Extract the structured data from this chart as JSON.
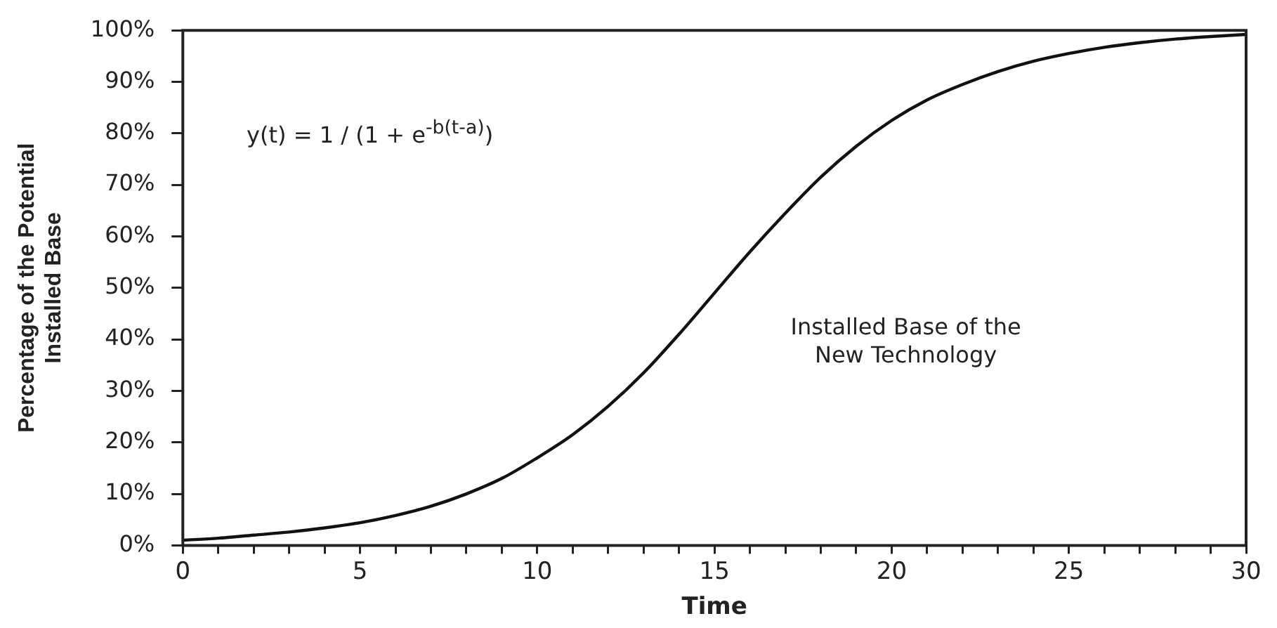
{
  "chart_data": {
    "type": "line",
    "xlabel": "Time",
    "ylabel": "Percentage of the Potential\nInstalled Base",
    "annotations": [
      "y(t) = 1 / (1 + e$^{-b(t-a)}$)",
      "Installed Base of the\nNew Technology"
    ],
    "x": [
      0,
      1,
      2,
      3,
      4,
      5,
      6,
      7,
      8,
      9,
      10,
      11,
      12,
      13,
      14,
      15,
      16,
      17,
      18,
      19,
      20,
      21,
      22,
      23,
      24,
      25,
      26,
      27,
      28,
      29,
      30
    ],
    "series": [
      {
        "color": "#111111",
        "values": [
          1,
          1.4,
          2,
          2.6,
          3.4,
          4.4,
          5.8,
          7.6,
          10,
          13,
          17,
          21.5,
          27,
          33.5,
          41,
          49,
          57,
          64.5,
          71.5,
          77.5,
          82.5,
          86.5,
          89.5,
          92,
          94,
          95.5,
          96.7,
          97.6,
          98.3,
          98.8,
          99.2
        ]
      }
    ],
    "xlim": [
      0,
      30
    ],
    "xticks": [
      0,
      {
        "value": 1,
        "label": null
      },
      {
        "value": 2,
        "label": null
      },
      {
        "value": 3,
        "label": null
      },
      {
        "value": 4,
        "label": null
      },
      5,
      {
        "value": 6,
        "label": null
      },
      {
        "value": 7,
        "label": null
      },
      {
        "value": 8,
        "label": null
      },
      {
        "value": 9,
        "label": null
      },
      10,
      {
        "value": 11,
        "label": null
      },
      {
        "value": 12,
        "label": null
      },
      {
        "value": 13,
        "label": null
      },
      {
        "value": 14,
        "label": null
      },
      15,
      {
        "value": 16,
        "label": null
      },
      {
        "value": 17,
        "label": null
      },
      {
        "value": 18,
        "label": null
      },
      {
        "value": 19,
        "label": null
      },
      20,
      {
        "value": 21,
        "label": null
      },
      {
        "value": 22,
        "label": null
      },
      {
        "value": 23,
        "label": null
      },
      {
        "value": 24,
        "label": null
      },
      25,
      {
        "value": 26,
        "label": null
      },
      {
        "value": 27,
        "label": null
      },
      {
        "value": 28,
        "label": null
      },
      {
        "value": 29,
        "label": null
      },
      30
    ],
    "ylim": [
      0,
      100
    ],
    "yticks": [
      {
        "value": 0,
        "label": "0%"
      },
      {
        "value": 10,
        "label": "10%"
      },
      {
        "value": 20,
        "label": "20%"
      },
      {
        "value": 30,
        "label": "30%"
      },
      {
        "value": 40,
        "label": "40%"
      },
      {
        "value": 50,
        "label": "50%"
      },
      {
        "value": 60,
        "label": "60%"
      },
      {
        "value": 70,
        "label": "70%"
      },
      {
        "value": 80,
        "label": "80%"
      },
      {
        "value": 90,
        "label": "90%"
      },
      {
        "value": 100,
        "label": "100%"
      }
    ],
    "grid": false,
    "legend": false,
    "marker": "none",
    "line_style": "solid"
  }
}
